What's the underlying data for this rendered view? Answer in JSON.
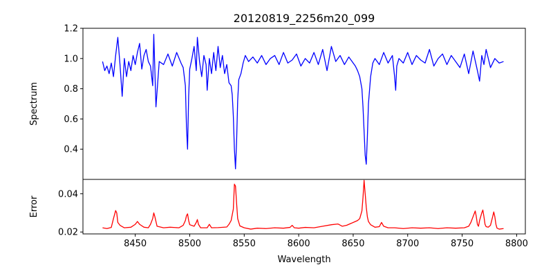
{
  "chart_data": [
    {
      "type": "line",
      "title": "20120819_2256m20_099",
      "xlabel": "",
      "ylabel": "Spectrum",
      "xlim": [
        8402,
        8808
      ],
      "ylim": [
        0.2,
        1.2
      ],
      "yticks": [
        0.4,
        0.6,
        0.8,
        1.0,
        1.2
      ],
      "ytick_labels": [
        "0.4",
        "0.6",
        "0.8",
        "1.0",
        "1.2"
      ],
      "grid": false,
      "series": [
        {
          "color": "#0000ff",
          "x": [
            8420,
            8422,
            8424,
            8426,
            8428,
            8430,
            8432,
            8434,
            8436,
            8438,
            8440,
            8442,
            8444,
            8446,
            8448,
            8450,
            8452,
            8454,
            8456,
            8458,
            8460,
            8462,
            8464,
            8466,
            8467,
            8469,
            8472,
            8476,
            8480,
            8484,
            8488,
            8492,
            8494,
            8496,
            8497,
            8498,
            8499,
            8500,
            8502,
            8504,
            8506,
            8507,
            8509,
            8511,
            8513,
            8515,
            8516,
            8518,
            8520,
            8522,
            8524,
            8526,
            8528,
            8530,
            8532,
            8534,
            8536,
            8538,
            8539,
            8540,
            8541,
            8542,
            8543,
            8544,
            8545,
            8547,
            8549,
            8551,
            8554,
            8558,
            8562,
            8566,
            8570,
            8574,
            8578,
            8582,
            8586,
            8590,
            8594,
            8598,
            8602,
            8606,
            8610,
            8614,
            8618,
            8622,
            8626,
            8630,
            8634,
            8638,
            8642,
            8646,
            8650,
            8652,
            8654,
            8656,
            8658,
            8659,
            8660,
            8661,
            8662,
            8663,
            8664,
            8666,
            8668,
            8670,
            8674,
            8678,
            8682,
            8686,
            8688,
            8689,
            8690,
            8692,
            8696,
            8700,
            8704,
            8708,
            8712,
            8716,
            8720,
            8724,
            8728,
            8732,
            8736,
            8740,
            8744,
            8748,
            8752,
            8756,
            8760,
            8764,
            8766,
            8768,
            8770,
            8772,
            8776,
            8780,
            8784,
            8788
          ],
          "y": [
            0.98,
            0.92,
            0.95,
            0.9,
            0.97,
            0.88,
            1.02,
            1.14,
            0.96,
            0.75,
            1.0,
            0.88,
            0.98,
            0.92,
            1.02,
            0.96,
            1.04,
            1.1,
            0.93,
            1.02,
            1.06,
            0.98,
            0.95,
            0.82,
            1.16,
            0.68,
            0.98,
            0.96,
            1.03,
            0.95,
            1.04,
            0.97,
            0.94,
            0.82,
            0.55,
            0.4,
            0.75,
            0.93,
            1.0,
            1.08,
            0.92,
            1.14,
            0.98,
            0.88,
            1.02,
            0.96,
            0.79,
            1.0,
            0.9,
            1.04,
            0.92,
            1.08,
            0.94,
            1.02,
            0.9,
            0.96,
            0.84,
            0.82,
            0.76,
            0.62,
            0.4,
            0.27,
            0.45,
            0.72,
            0.86,
            0.9,
            0.97,
            1.02,
            0.98,
            1.01,
            0.97,
            1.02,
            0.96,
            1.0,
            1.02,
            0.96,
            1.04,
            0.97,
            0.99,
            1.03,
            0.95,
            1.0,
            0.97,
            1.04,
            0.96,
            1.06,
            0.92,
            1.08,
            0.98,
            1.02,
            0.96,
            1.01,
            0.97,
            0.95,
            0.92,
            0.88,
            0.8,
            0.68,
            0.52,
            0.36,
            0.3,
            0.48,
            0.7,
            0.88,
            0.97,
            1.0,
            0.96,
            1.04,
            0.97,
            1.02,
            0.88,
            0.79,
            0.95,
            1.0,
            0.97,
            1.04,
            0.96,
            1.02,
            0.99,
            0.97,
            1.06,
            0.95,
            1.0,
            1.03,
            0.96,
            1.02,
            0.98,
            0.94,
            1.03,
            0.9,
            1.05,
            0.92,
            0.85,
            1.02,
            0.96,
            1.06,
            0.94,
            1.0,
            0.97,
            0.98
          ]
        }
      ]
    },
    {
      "type": "line",
      "title": "",
      "xlabel": "Wavelength",
      "ylabel": "Error",
      "xlim": [
        8402,
        8808
      ],
      "ylim": [
        0.019,
        0.0475
      ],
      "yticks": [
        0.02,
        0.04
      ],
      "ytick_labels": [
        "0.02",
        "0.04"
      ],
      "xticks": [
        8450,
        8500,
        8550,
        8600,
        8650,
        8700,
        8750,
        8800
      ],
      "xtick_labels": [
        "8450",
        "8500",
        "8550",
        "8600",
        "8650",
        "8700",
        "8750",
        "8800"
      ],
      "grid": false,
      "series": [
        {
          "color": "#ff0000",
          "x": [
            8420,
            8424,
            8428,
            8430,
            8432,
            8433,
            8434,
            8436,
            8440,
            8446,
            8450,
            8452,
            8454,
            8458,
            8462,
            8464,
            8466,
            8467,
            8468,
            8470,
            8476,
            8482,
            8490,
            8494,
            8496,
            8497,
            8498,
            8499,
            8500,
            8504,
            8506,
            8507,
            8508,
            8510,
            8516,
            8518,
            8520,
            8526,
            8534,
            8536,
            8538,
            8540,
            8541,
            8542,
            8543,
            8544,
            8546,
            8550,
            8556,
            8562,
            8570,
            8578,
            8586,
            8592,
            8594,
            8596,
            8600,
            8606,
            8614,
            8622,
            8630,
            8636,
            8640,
            8644,
            8648,
            8652,
            8654,
            8656,
            8658,
            8659,
            8660,
            8661,
            8662,
            8663,
            8664,
            8666,
            8670,
            8674,
            8676,
            8678,
            8682,
            8688,
            8696,
            8704,
            8712,
            8720,
            8728,
            8736,
            8744,
            8752,
            8756,
            8758,
            8760,
            8762,
            8763,
            8764,
            8765,
            8766,
            8768,
            8769,
            8770,
            8771,
            8772,
            8774,
            8776,
            8778,
            8779,
            8780,
            8781,
            8782,
            8784,
            8788
          ],
          "y": [
            0.0222,
            0.0218,
            0.0224,
            0.027,
            0.0312,
            0.03,
            0.025,
            0.0235,
            0.0222,
            0.0225,
            0.024,
            0.0255,
            0.024,
            0.0225,
            0.0222,
            0.024,
            0.027,
            0.03,
            0.028,
            0.023,
            0.0222,
            0.0225,
            0.0222,
            0.0235,
            0.026,
            0.0285,
            0.0295,
            0.026,
            0.0238,
            0.023,
            0.025,
            0.0265,
            0.024,
            0.0222,
            0.0222,
            0.024,
            0.0222,
            0.0223,
            0.0226,
            0.024,
            0.026,
            0.032,
            0.045,
            0.044,
            0.035,
            0.027,
            0.0232,
            0.0222,
            0.0215,
            0.022,
            0.0218,
            0.0222,
            0.022,
            0.0224,
            0.0235,
            0.0222,
            0.022,
            0.0224,
            0.0222,
            0.023,
            0.0238,
            0.0242,
            0.023,
            0.0235,
            0.0245,
            0.0255,
            0.026,
            0.027,
            0.031,
            0.038,
            0.047,
            0.04,
            0.033,
            0.028,
            0.0255,
            0.0238,
            0.0225,
            0.0228,
            0.025,
            0.023,
            0.0222,
            0.0222,
            0.0218,
            0.0222,
            0.022,
            0.0222,
            0.0218,
            0.0222,
            0.022,
            0.0222,
            0.023,
            0.025,
            0.028,
            0.031,
            0.028,
            0.024,
            0.023,
            0.026,
            0.03,
            0.0315,
            0.028,
            0.024,
            0.0228,
            0.0225,
            0.0235,
            0.028,
            0.0305,
            0.028,
            0.024,
            0.022,
            0.0215,
            0.0218
          ]
        }
      ]
    }
  ]
}
